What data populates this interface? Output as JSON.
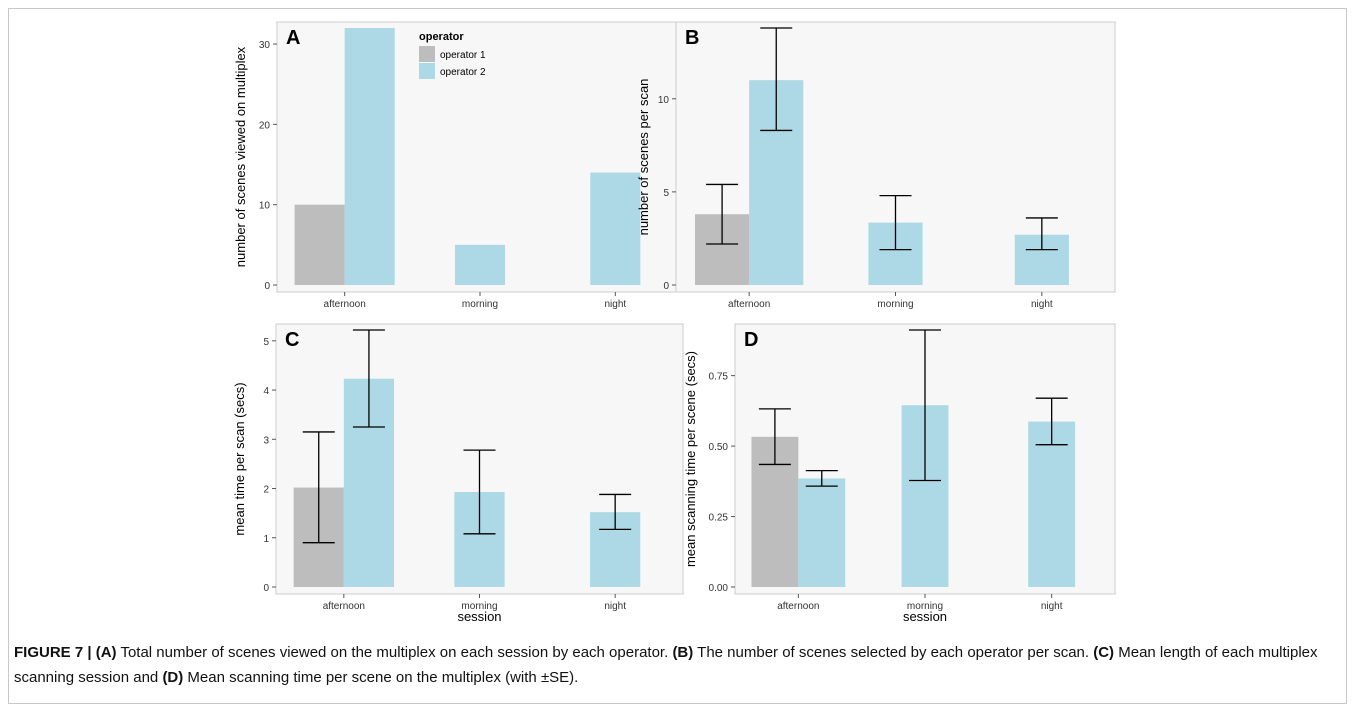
{
  "figure": {
    "caption_segments": [
      {
        "text": "FIGURE 7 | (A)",
        "bold": true
      },
      {
        "text": " Total number of scenes viewed on the multiplex on each session by each operator. ",
        "bold": false
      },
      {
        "text": "(B)",
        "bold": true
      },
      {
        "text": " The number of scenes selected by each operator per scan. ",
        "bold": false
      },
      {
        "text": "(C)",
        "bold": true
      },
      {
        "text": " Mean length of each multiplex scanning session and ",
        "bold": false
      },
      {
        "text": "(D)",
        "bold": true
      },
      {
        "text": " Mean scanning time per scene on the multiplex (with ±SE).",
        "bold": false
      }
    ]
  },
  "legend": {
    "title": "operator",
    "entries": [
      {
        "label": "operator 1",
        "color": "#bdbdbd"
      },
      {
        "label": "operator 2",
        "color": "#add8e6"
      }
    ]
  },
  "colors": {
    "panel_background": "#f7f7f7",
    "panel_border": "#cccccc",
    "operator_1": "#bdbdbd",
    "operator_2": "#add8e6",
    "error_bar": "#000000"
  },
  "chart_data": [
    {
      "panel_label": "A",
      "type": "bar",
      "categories": [
        "afternoon",
        "morning",
        "night"
      ],
      "series": [
        {
          "name": "operator 1",
          "values": [
            10,
            null,
            null
          ]
        },
        {
          "name": "operator 2",
          "values": [
            32,
            5,
            14
          ]
        }
      ],
      "ylabel": "number of scenes viewed on multiplex",
      "xlabel": "",
      "ylim": [
        0,
        32
      ],
      "yticks": [
        0,
        10,
        20,
        30
      ],
      "legend": "top-left"
    },
    {
      "panel_label": "B",
      "type": "bar",
      "categories": [
        "afternoon",
        "morning",
        "night"
      ],
      "series": [
        {
          "name": "operator 1",
          "values": [
            3.8,
            null,
            null
          ],
          "error_low": [
            2.2,
            null,
            null
          ],
          "error_high": [
            5.4,
            null,
            null
          ]
        },
        {
          "name": "operator 2",
          "values": [
            11.0,
            3.35,
            2.7
          ],
          "error_low": [
            8.3,
            1.9,
            1.9
          ],
          "error_high": [
            13.8,
            4.8,
            3.6
          ]
        }
      ],
      "ylabel": "number of scenes per scan",
      "xlabel": "",
      "ylim": [
        0,
        13.8
      ],
      "yticks": [
        0,
        5,
        10
      ]
    },
    {
      "panel_label": "C",
      "type": "bar",
      "categories": [
        "afternoon",
        "morning",
        "night"
      ],
      "series": [
        {
          "name": "operator 1",
          "values": [
            2.02,
            null,
            null
          ],
          "error_low": [
            0.9,
            null,
            null
          ],
          "error_high": [
            3.15,
            null,
            null
          ]
        },
        {
          "name": "operator 2",
          "values": [
            4.23,
            1.93,
            1.52
          ],
          "error_low": [
            3.25,
            1.08,
            1.17
          ],
          "error_high": [
            5.22,
            2.78,
            1.88
          ]
        }
      ],
      "ylabel": "mean time per scan (secs)",
      "xlabel": "session",
      "ylim": [
        0,
        5.22
      ],
      "yticks": [
        0,
        1,
        2,
        3,
        4,
        5
      ]
    },
    {
      "panel_label": "D",
      "type": "bar",
      "categories": [
        "afternoon",
        "morning",
        "night"
      ],
      "series": [
        {
          "name": "operator 1",
          "values": [
            0.533,
            null,
            null
          ],
          "error_low": [
            0.435,
            null,
            null
          ],
          "error_high": [
            0.632,
            null,
            null
          ]
        },
        {
          "name": "operator 2",
          "values": [
            0.385,
            0.645,
            0.587
          ],
          "error_low": [
            0.358,
            0.378,
            0.505
          ],
          "error_high": [
            0.413,
            0.912,
            0.67
          ]
        }
      ],
      "ylabel": "mean scanning time per scene (secs)",
      "xlabel": "session",
      "ylim": [
        0,
        0.912
      ],
      "yticks": [
        "0.00",
        "0.25",
        "0.50",
        "0.75"
      ]
    }
  ]
}
